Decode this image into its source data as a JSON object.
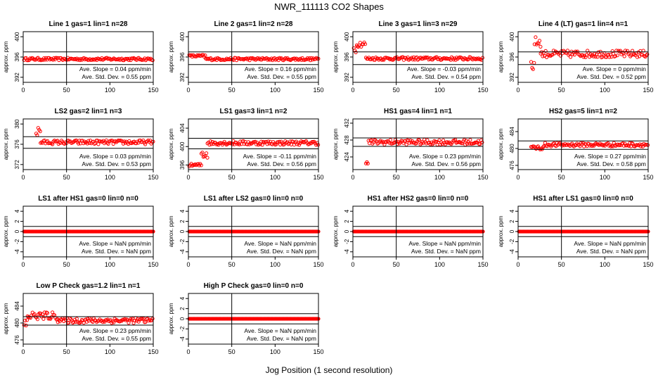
{
  "figure": {
    "title": "NWR_111113  CO2 Shapes",
    "xlabel": "Jog Position (1 second resolution)"
  },
  "colors": {
    "points": "#ff0000",
    "axes": "#000000"
  },
  "chart_data": [
    {
      "title": "Line 1 gas=1 lin=1 n=28",
      "type": "scatter",
      "ylabel": "approx. ppm",
      "xlim": [
        0,
        150
      ],
      "ylim": [
        391,
        401
      ],
      "xticks": [
        0,
        50,
        100,
        150
      ],
      "yticks": [
        392,
        396,
        400
      ],
      "hlines": [
        397,
        394.5
      ],
      "vline": 50,
      "slope_text": "Ave. Slope = 0.04  ppm/min",
      "std_text": "Ave. Std. Dev. = 0.55  ppm",
      "series": [
        {
          "x_start": 1,
          "x_end": 150,
          "segments": [
            [
              1,
              150,
              395.6,
              0.25
            ]
          ]
        }
      ]
    },
    {
      "title": "Line 2 gas=1 lin=2 n=28",
      "type": "scatter",
      "ylabel": "approx. ppm",
      "xlim": [
        0,
        150
      ],
      "ylim": [
        391,
        401
      ],
      "xticks": [
        0,
        50,
        100,
        150
      ],
      "yticks": [
        392,
        396,
        400
      ],
      "hlines": [
        397,
        394.5
      ],
      "vline": 50,
      "slope_text": "Ave. Slope = 0.16  ppm/min",
      "std_text": "Ave. Std. Dev. = 0.55  ppm",
      "series": [
        {
          "segments": [
            [
              1,
              20,
              396.2,
              0.25
            ],
            [
              20,
              150,
              395.6,
              0.25
            ]
          ]
        }
      ]
    },
    {
      "title": "Line 3 gas=1 lin=3 n=29",
      "type": "scatter",
      "ylabel": "approx. ppm",
      "xlim": [
        0,
        150
      ],
      "ylim": [
        391,
        401
      ],
      "xticks": [
        0,
        50,
        100,
        150
      ],
      "yticks": [
        392,
        396,
        400
      ],
      "hlines": [
        397,
        394.5
      ],
      "vline": 50,
      "slope_text": "Ave. Slope = -0.03  ppm/min",
      "std_text": "Ave. Std. Dev. = 0.54  ppm",
      "series": [
        {
          "segments": [
            [
              1,
              5,
              398.0,
              1.2
            ],
            [
              5,
              15,
              398.6,
              0.6
            ],
            [
              15,
              150,
              395.7,
              0.3
            ]
          ]
        }
      ]
    },
    {
      "title": "Line 4 (LT) gas=1 lin=4 n=1",
      "type": "scatter",
      "ylabel": "approx. ppm",
      "xlim": [
        0,
        150
      ],
      "ylim": [
        391,
        401
      ],
      "xticks": [
        0,
        50,
        100,
        150
      ],
      "yticks": [
        392,
        396,
        400
      ],
      "hlines": [
        397,
        394.5
      ],
      "vline": 50,
      "slope_text": "Ave. Slope = 0  ppm/min",
      "std_text": "Ave. Std. Dev. = 0.52  ppm",
      "series": [
        {
          "segments": [
            [
              15,
              19,
              394.5,
              1.5
            ],
            [
              19,
              26,
              399.0,
              1.0
            ],
            [
              26,
              150,
              396.6,
              0.7
            ]
          ]
        }
      ]
    },
    {
      "title": "LS2 gas=2 lin=1 n=3",
      "type": "scatter",
      "ylabel": "approx. ppm",
      "xlim": [
        0,
        150
      ],
      "ylim": [
        371,
        381
      ],
      "xticks": [
        0,
        50,
        100,
        150
      ],
      "yticks": [
        372,
        376,
        380
      ],
      "hlines": [
        377.5,
        375.2
      ],
      "vline": 50,
      "slope_text": "Ave. Slope = 0.03  ppm/min",
      "std_text": "Ave. Std. Dev. = 0.53  ppm",
      "series": [
        {
          "segments": [
            [
              15,
              20,
              378.5,
              1.2
            ],
            [
              20,
              150,
              376.4,
              0.4
            ]
          ]
        }
      ]
    },
    {
      "title": "LS1 gas=3 lin=1 n=2",
      "type": "scatter",
      "ylabel": "approx. ppm",
      "xlim": [
        0,
        150
      ],
      "ylim": [
        395,
        406
      ],
      "xticks": [
        0,
        50,
        100,
        150
      ],
      "yticks": [
        396,
        400,
        404
      ],
      "hlines": [
        401.8,
        399.5
      ],
      "vline": 50,
      "slope_text": "Ave. Slope = -0.11  ppm/min",
      "std_text": "Ave. Std. Dev. = 0.56  ppm",
      "series": [
        {
          "segments": [
            [
              1,
              15,
              396.0,
              0.3
            ],
            [
              15,
              22,
              398.5,
              1.2
            ],
            [
              22,
              150,
              400.8,
              0.45
            ]
          ]
        }
      ]
    },
    {
      "title": "HS1 gas=4 lin=1 n=1",
      "type": "scatter",
      "ylabel": "approx. ppm",
      "xlim": [
        0,
        150
      ],
      "ylim": [
        421,
        433
      ],
      "xticks": [
        0,
        50,
        100,
        150
      ],
      "yticks": [
        424,
        428,
        432
      ],
      "hlines": [
        428.5,
        426.5
      ],
      "vline": 50,
      "slope_text": "Ave. Slope = 0.23  ppm/min",
      "std_text": "Ave. Std. Dev. = 0.56  ppm",
      "series": [
        {
          "segments": [
            [
              15,
              18,
              422.5,
              0.4
            ],
            [
              18,
              150,
              427.5,
              0.6
            ]
          ]
        }
      ]
    },
    {
      "title": "HS2 gas=5 lin=1 n=2",
      "type": "scatter",
      "ylabel": "approx. ppm",
      "xlim": [
        0,
        150
      ],
      "ylim": [
        475,
        487
      ],
      "xticks": [
        0,
        50,
        100,
        150
      ],
      "yticks": [
        476,
        480,
        484
      ],
      "hlines": [
        481.8,
        479.8
      ],
      "vline": 50,
      "slope_text": "Ave. Slope = 0.27  ppm/min",
      "std_text": "Ave. Std. Dev. = 0.58  ppm",
      "series": [
        {
          "segments": [
            [
              15,
              30,
              480.2,
              0.5
            ],
            [
              30,
              150,
              480.9,
              0.45
            ]
          ]
        }
      ]
    },
    {
      "title": "LS1 after HS1 gas=0 lin=0 n=0",
      "type": "scatter",
      "ylabel": "approx. ppm",
      "xlim": [
        0,
        150
      ],
      "ylim": [
        -5,
        5
      ],
      "xticks": [
        0,
        50,
        100,
        150
      ],
      "yticks": [
        -4,
        -2,
        0,
        2,
        4
      ],
      "hlines": [
        1,
        -1
      ],
      "vline": 50,
      "slope_text": "Ave. Slope =  NaN  ppm/min",
      "std_text": "Ave. Std. Dev. =  NaN  ppm",
      "series": [
        {
          "segments": [
            [
              1,
              150,
              0,
              0
            ]
          ]
        }
      ]
    },
    {
      "title": "LS1 after LS2 gas=0 lin=0 n=0",
      "type": "scatter",
      "ylabel": "approx. ppm",
      "xlim": [
        0,
        150
      ],
      "ylim": [
        -5,
        5
      ],
      "xticks": [
        0,
        50,
        100,
        150
      ],
      "yticks": [
        -4,
        -2,
        0,
        2,
        4
      ],
      "hlines": [
        1,
        -1
      ],
      "vline": 50,
      "slope_text": "Ave. Slope =  NaN  ppm/min",
      "std_text": "Ave. Std. Dev. =  NaN  ppm",
      "series": [
        {
          "segments": [
            [
              1,
              150,
              0,
              0
            ]
          ]
        }
      ]
    },
    {
      "title": "HS1 after HS2 gas=0 lin=0 n=0",
      "type": "scatter",
      "ylabel": "approx. ppm",
      "xlim": [
        0,
        150
      ],
      "ylim": [
        -5,
        5
      ],
      "xticks": [
        0,
        50,
        100,
        150
      ],
      "yticks": [
        -4,
        -2,
        0,
        2,
        4
      ],
      "hlines": [
        1,
        -1
      ],
      "vline": 50,
      "slope_text": "Ave. Slope =  NaN  ppm/min",
      "std_text": "Ave. Std. Dev. =  NaN  ppm",
      "series": [
        {
          "segments": [
            [
              1,
              150,
              0,
              0
            ]
          ]
        }
      ]
    },
    {
      "title": "HS1 after LS1 gas=0 lin=0 n=0",
      "type": "scatter",
      "ylabel": "approx. ppm",
      "xlim": [
        0,
        150
      ],
      "ylim": [
        -5,
        5
      ],
      "xticks": [
        0,
        50,
        100,
        150
      ],
      "yticks": [
        -4,
        -2,
        0,
        2,
        4
      ],
      "hlines": [
        1,
        -1
      ],
      "vline": 50,
      "slope_text": "Ave. Slope =  NaN  ppm/min",
      "std_text": "Ave. Std. Dev. =  NaN  ppm",
      "series": [
        {
          "segments": [
            [
              1,
              150,
              0,
              0
            ]
          ]
        }
      ]
    },
    {
      "title": "Low P Check gas=1.2 lin=1 n=1",
      "type": "scatter",
      "ylabel": "approx. ppm",
      "xlim": [
        0,
        150
      ],
      "ylim": [
        475,
        487
      ],
      "xticks": [
        0,
        50,
        100,
        150
      ],
      "yticks": [
        476,
        480,
        484
      ],
      "hlines": [
        481.5,
        479.5
      ],
      "vline": 50,
      "slope_text": "Ave. Slope = 0.23  ppm/min",
      "std_text": "Ave. Std. Dev. = 0.55  ppm",
      "series": [
        {
          "segments": [
            [
              1,
              5,
              479.5,
              2.0
            ],
            [
              5,
              40,
              481.7,
              0.9
            ],
            [
              40,
              150,
              480.6,
              0.6
            ]
          ]
        }
      ]
    },
    {
      "title": "High P Check gas=0 lin=0 n=0",
      "type": "scatter",
      "ylabel": "approx. ppm",
      "xlim": [
        0,
        150
      ],
      "ylim": [
        -5,
        5
      ],
      "xticks": [
        0,
        50,
        100,
        150
      ],
      "yticks": [
        -4,
        -2,
        0,
        2,
        4
      ],
      "hlines": [
        1,
        -1
      ],
      "vline": 50,
      "slope_text": "Ave. Slope =  NaN  ppm/min",
      "std_text": "Ave. Std. Dev. =  NaN  ppm",
      "series": [
        {
          "segments": [
            [
              1,
              150,
              0,
              0
            ]
          ]
        }
      ]
    }
  ]
}
